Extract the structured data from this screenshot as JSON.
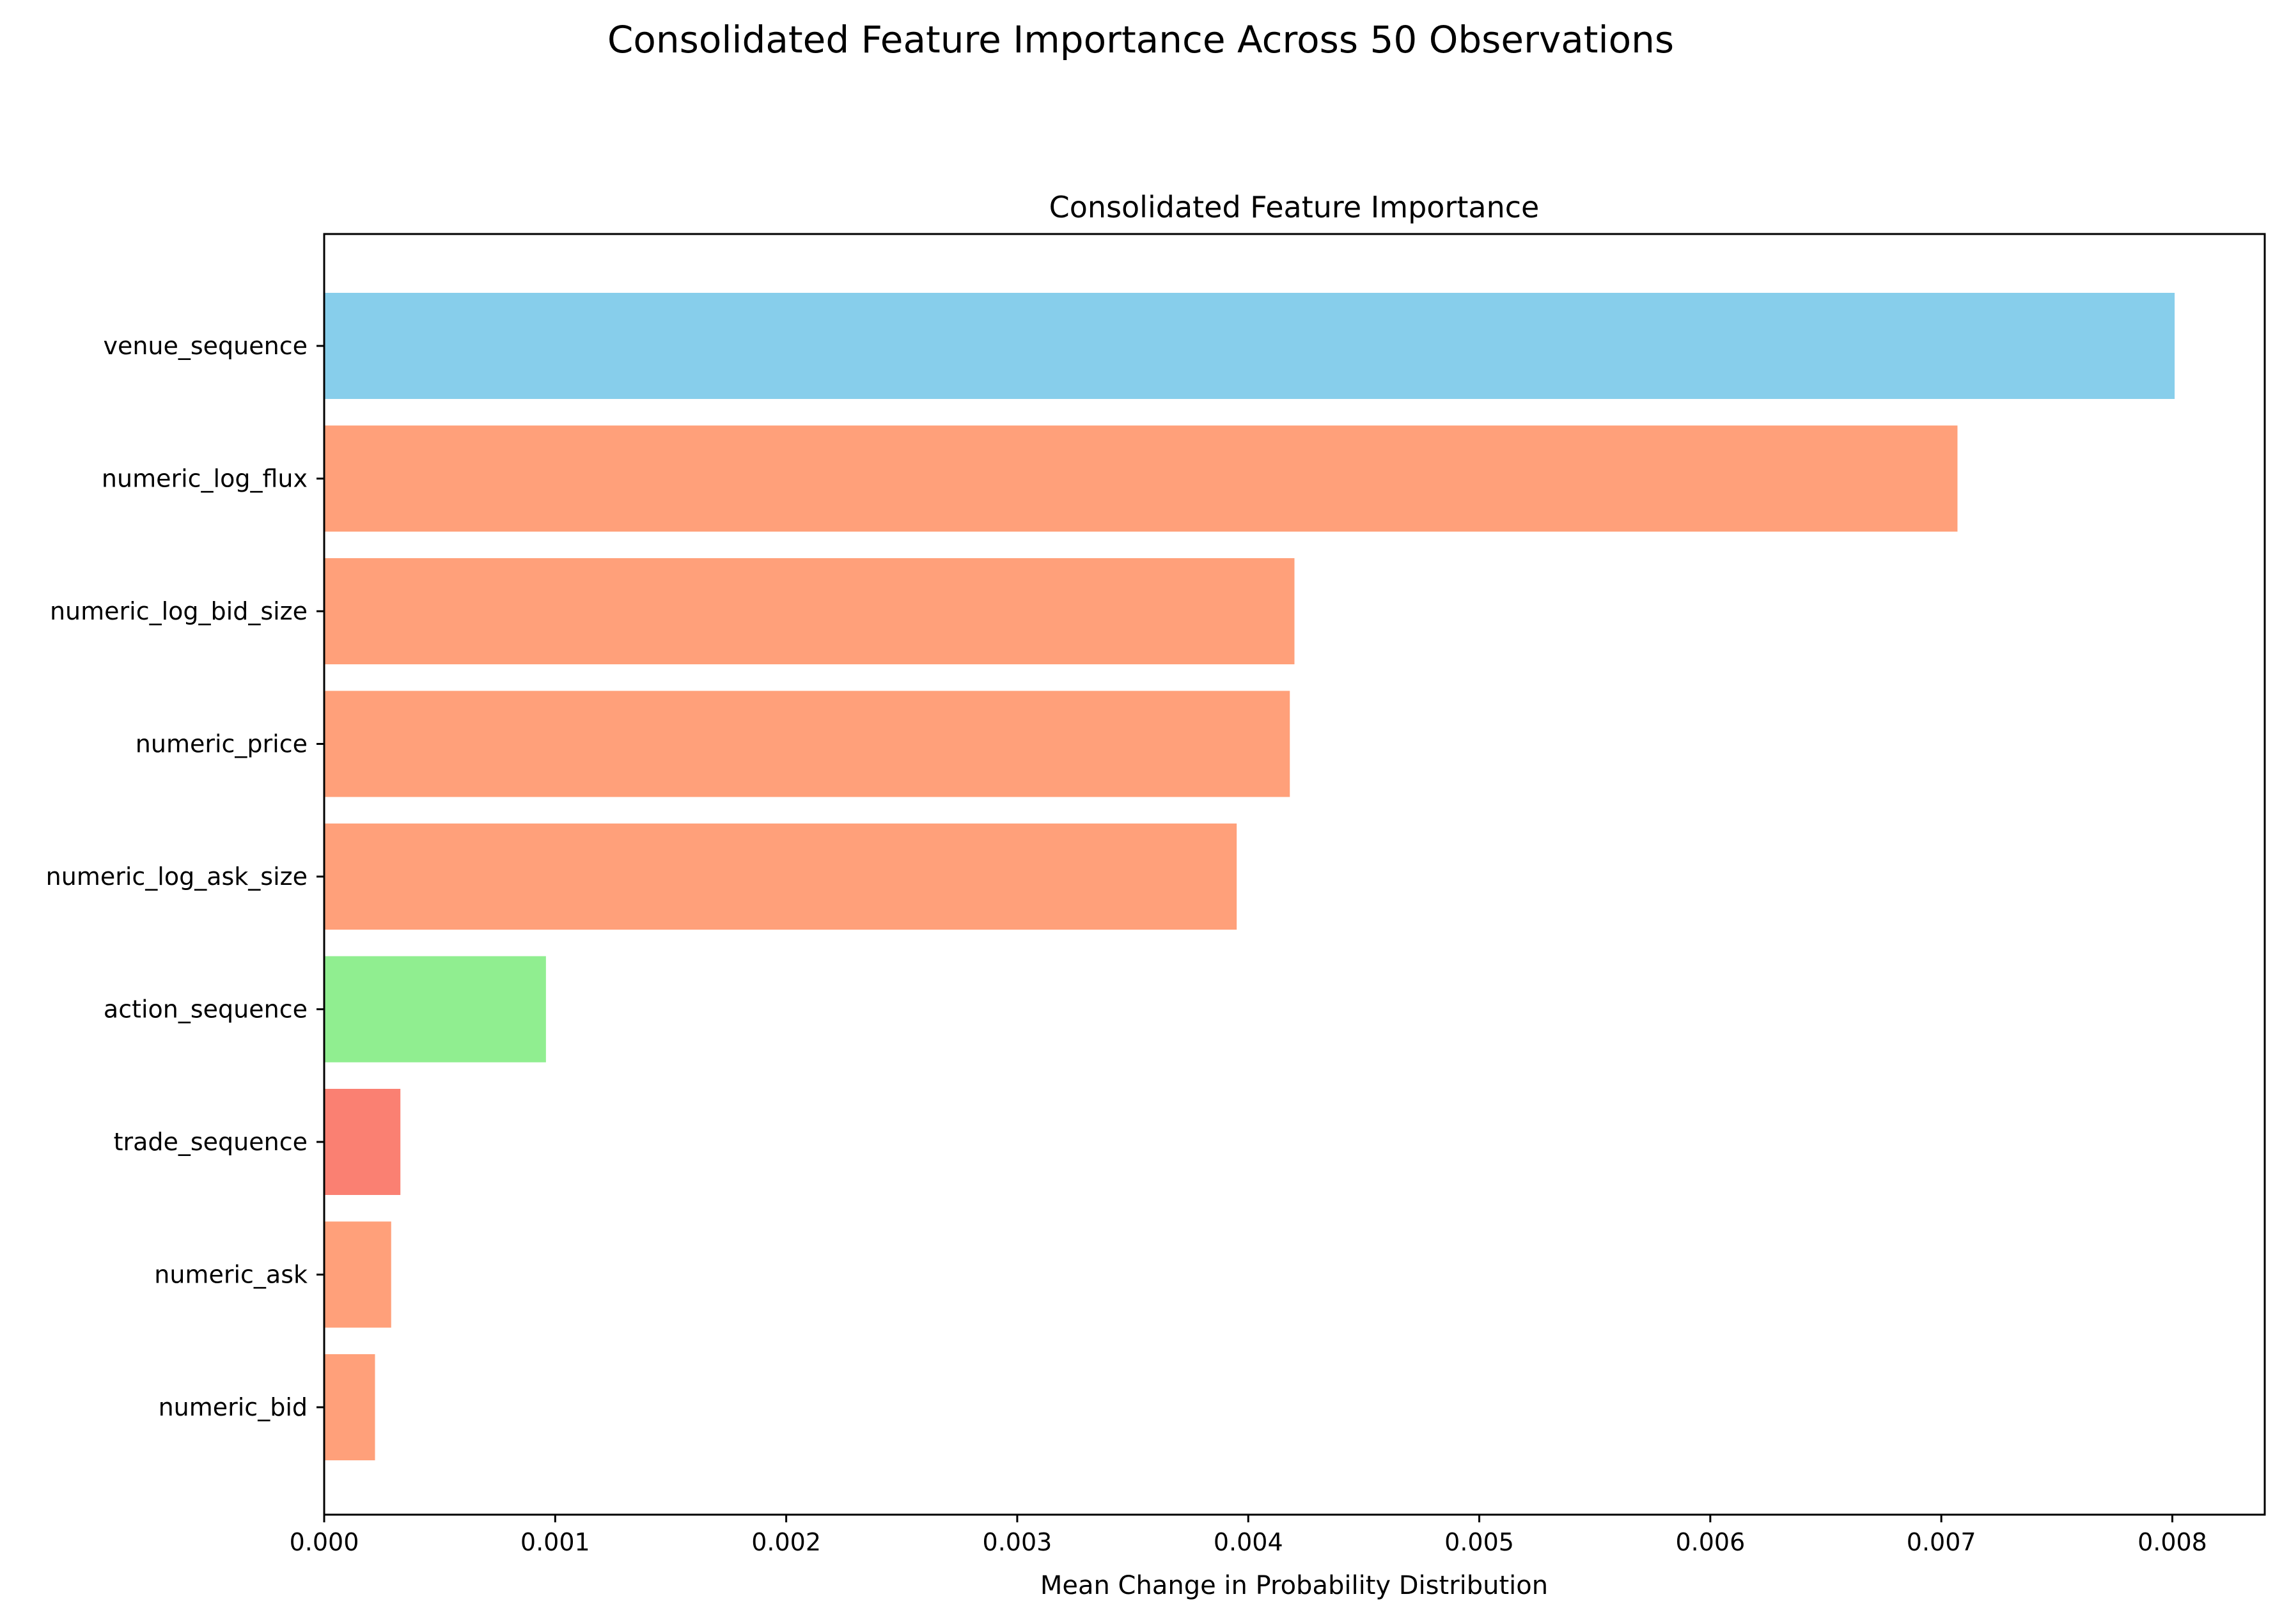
{
  "figure": {
    "suptitle": "Consolidated Feature Importance Across 50 Observations"
  },
  "chart_data": {
    "type": "bar",
    "orientation": "horizontal",
    "title": "Consolidated Feature Importance",
    "xlabel": "Mean Change in Probability Distribution",
    "ylabel": "",
    "xlim": [
      0,
      0.0084
    ],
    "xticks": [
      "0.000",
      "0.001",
      "0.002",
      "0.003",
      "0.004",
      "0.005",
      "0.006",
      "0.007",
      "0.008"
    ],
    "grid": false,
    "categories": [
      "venue_sequence",
      "numeric_log_flux",
      "numeric_log_bid_size",
      "numeric_price",
      "numeric_log_ask_size",
      "action_sequence",
      "trade_sequence",
      "numeric_ask",
      "numeric_bid"
    ],
    "values": [
      0.00801,
      0.00707,
      0.0042,
      0.00418,
      0.00395,
      0.00096,
      0.00033,
      0.00029,
      0.00022
    ],
    "colors": [
      "#87ceeb",
      "#ffa07a",
      "#ffa07a",
      "#ffa07a",
      "#ffa07a",
      "#90ee90",
      "#fa8072",
      "#ffa07a",
      "#ffa07a"
    ]
  }
}
